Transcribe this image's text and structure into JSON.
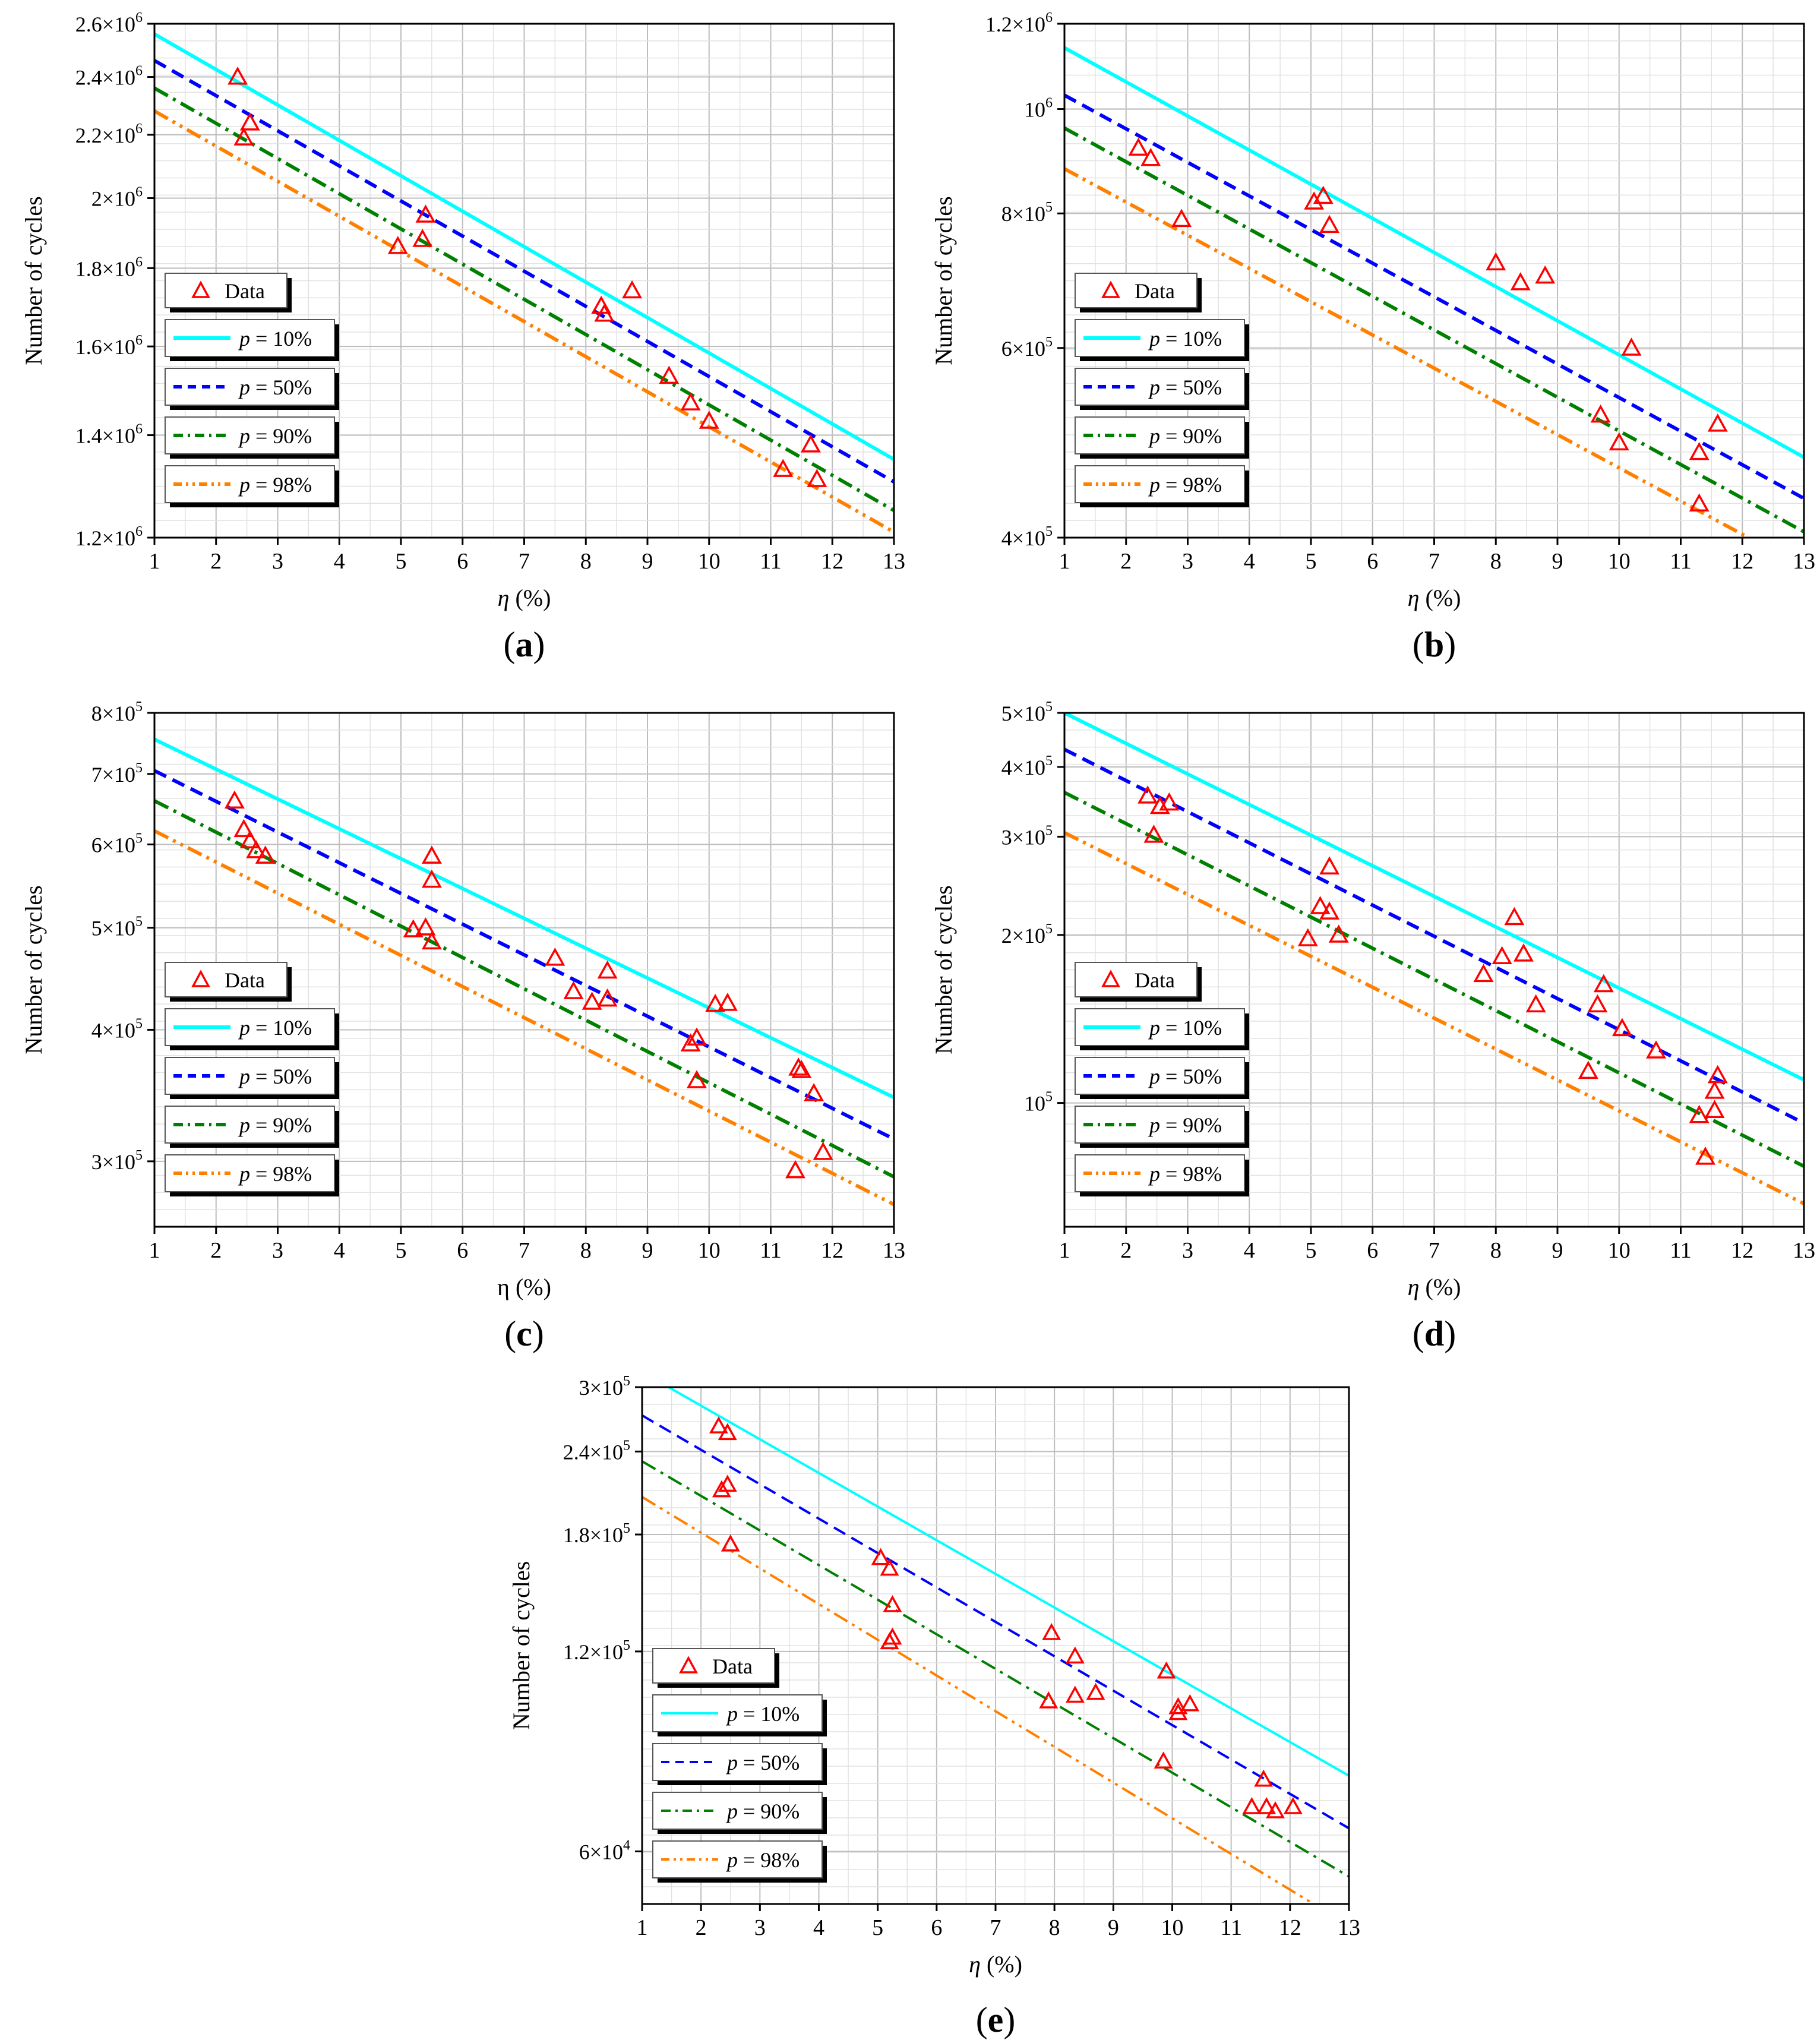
{
  "figure": {
    "x_axis_label_italic": "η",
    "x_axis_label_unit": " (%)",
    "y_axis_label": "Number of cycles",
    "legend_data_label": "Data",
    "legend_p_symbol": "p",
    "legend_series_suffixes": [
      " = 10%",
      " = 50%",
      " = 90%",
      " = 98%"
    ],
    "colors": {
      "p10": "#00ffff",
      "p50": "#0000ff",
      "p90": "#008000",
      "p98": "#ff8000",
      "data": "#ff0000",
      "grid": "#c8c8c8"
    }
  },
  "chart_data": [
    {
      "id": "a",
      "caption_letter": "a",
      "type": "scatter",
      "yscale": "log",
      "xlim": [
        1,
        13
      ],
      "ylim": [
        1200000,
        2600000
      ],
      "xticks": [
        "1",
        "2",
        "3",
        "4",
        "5",
        "6",
        "7",
        "8",
        "9",
        "10",
        "11",
        "12",
        "13"
      ],
      "yticks": [
        {
          "value": 1200000,
          "mant": "1.2×10",
          "exp": "6"
        },
        {
          "value": 1400000,
          "mant": "1.4×10",
          "exp": "6"
        },
        {
          "value": 1600000,
          "mant": "1.6×10",
          "exp": "6"
        },
        {
          "value": 1800000,
          "mant": "1.8×10",
          "exp": "6"
        },
        {
          "value": 2000000,
          "mant": "2×10",
          "exp": "6"
        },
        {
          "value": 2200000,
          "mant": "2.2×10",
          "exp": "6"
        },
        {
          "value": 2400000,
          "mant": "2.4×10",
          "exp": "6"
        },
        {
          "value": 2600000,
          "mant": "2.6×10",
          "exp": "6"
        }
      ],
      "series": [
        {
          "name": "p = 10%",
          "x": [
            1,
            13
          ],
          "y": [
            2560000,
            1350000
          ]
        },
        {
          "name": "p = 50%",
          "x": [
            1,
            13
          ],
          "y": [
            2460000,
            1305000
          ]
        },
        {
          "name": "p = 90%",
          "x": [
            1,
            13
          ],
          "y": [
            2360000,
            1250000
          ]
        },
        {
          "name": "p = 98%",
          "x": [
            1,
            13
          ],
          "y": [
            2280000,
            1210000
          ]
        }
      ],
      "data_points": {
        "x": [
          2.35,
          2.55,
          2.45,
          5.4,
          5.35,
          4.95,
          8.75,
          8.25,
          8.3,
          9.35,
          9.7,
          10.0,
          11.2,
          11.65,
          11.75
        ],
        "y": [
          2400000,
          2240000,
          2190000,
          1950000,
          1880000,
          1860000,
          1740000,
          1700000,
          1680000,
          1530000,
          1470000,
          1430000,
          1330000,
          1380000,
          1310000
        ]
      }
    },
    {
      "id": "b",
      "caption_letter": "b",
      "type": "scatter",
      "yscale": "log",
      "xlim": [
        1,
        13
      ],
      "ylim": [
        400000,
        1200000
      ],
      "xticks": [
        "1",
        "2",
        "3",
        "4",
        "5",
        "6",
        "7",
        "8",
        "9",
        "10",
        "11",
        "12",
        "13"
      ],
      "yticks": [
        {
          "value": 400000,
          "mant": "4×10",
          "exp": "5"
        },
        {
          "value": 600000,
          "mant": "6×10",
          "exp": "5"
        },
        {
          "value": 800000,
          "mant": "8×10",
          "exp": "5"
        },
        {
          "value": 1000000,
          "mant": "10",
          "exp": "6"
        },
        {
          "value": 1200000,
          "mant": "1.2×10",
          "exp": "6"
        }
      ],
      "series": [
        {
          "name": "p = 10%",
          "x": [
            1,
            13
          ],
          "y": [
            1140000,
            475000
          ]
        },
        {
          "name": "p = 50%",
          "x": [
            1,
            13
          ],
          "y": [
            1030000,
            435000
          ]
        },
        {
          "name": "p = 90%",
          "x": [
            1,
            13
          ],
          "y": [
            960000,
            405000
          ]
        },
        {
          "name": "p = 98%",
          "x": [
            1,
            12.1
          ],
          "y": [
            880000,
            400000
          ]
        }
      ],
      "data_points": {
        "x": [
          2.2,
          2.4,
          2.9,
          5.05,
          5.2,
          5.3,
          8.0,
          8.4,
          8.8,
          10.2,
          9.7,
          10.0,
          11.3,
          11.6,
          11.3
        ],
        "y": [
          920000,
          900000,
          790000,
          820000,
          830000,
          780000,
          720000,
          690000,
          700000,
          600000,
          520000,
          490000,
          480000,
          510000,
          430000
        ]
      }
    },
    {
      "id": "c",
      "caption_letter": "c",
      "type": "scatter",
      "yscale": "log",
      "xlim": [
        1,
        13
      ],
      "ylim": [
        260000,
        800000
      ],
      "xticks": [
        "1",
        "2",
        "3",
        "4",
        "5",
        "6",
        "7",
        "8",
        "9",
        "10",
        "11",
        "12",
        "13"
      ],
      "yticks": [
        {
          "value": 300000,
          "mant": "3×10",
          "exp": "5"
        },
        {
          "value": 400000,
          "mant": "4×10",
          "exp": "5"
        },
        {
          "value": 500000,
          "mant": "5×10",
          "exp": "5"
        },
        {
          "value": 600000,
          "mant": "6×10",
          "exp": "5"
        },
        {
          "value": 700000,
          "mant": "7×10",
          "exp": "5"
        },
        {
          "value": 800000,
          "mant": "8×10",
          "exp": "5"
        }
      ],
      "series": [
        {
          "name": "p = 10%",
          "x": [
            1,
            13
          ],
          "y": [
            755000,
            345000
          ]
        },
        {
          "name": "p = 50%",
          "x": [
            1,
            13
          ],
          "y": [
            705000,
            315000
          ]
        },
        {
          "name": "p = 90%",
          "x": [
            1,
            13
          ],
          "y": [
            660000,
            290000
          ]
        },
        {
          "name": "p = 98%",
          "x": [
            1,
            13
          ],
          "y": [
            618000,
            273000
          ]
        }
      ],
      "data_points": {
        "x": [
          2.3,
          2.45,
          2.55,
          2.65,
          2.8,
          5.5,
          5.5,
          5.2,
          5.4,
          5.5,
          7.5,
          7.8,
          8.1,
          8.35,
          8.35,
          9.7,
          9.8,
          9.8,
          10.1,
          10.3,
          11.45,
          11.5,
          11.7,
          11.4,
          11.85
        ],
        "y": [
          660000,
          620000,
          605000,
          592000,
          585000,
          585000,
          555000,
          498000,
          500000,
          485000,
          468000,
          435000,
          425000,
          455000,
          428000,
          388000,
          393000,
          358000,
          423000,
          424000,
          368000,
          366000,
          348000,
          294000,
          306000
        ]
      }
    },
    {
      "id": "d",
      "caption_letter": "d",
      "type": "scatter",
      "yscale": "log",
      "xlim": [
        1,
        13
      ],
      "ylim": [
        60000,
        500000
      ],
      "xticks": [
        "1",
        "2",
        "3",
        "4",
        "5",
        "6",
        "7",
        "8",
        "9",
        "10",
        "11",
        "12",
        "13"
      ],
      "yticks": [
        {
          "value": 100000,
          "mant": "10",
          "exp": "5"
        },
        {
          "value": 200000,
          "mant": "2×10",
          "exp": "5"
        },
        {
          "value": 300000,
          "mant": "3×10",
          "exp": "5"
        },
        {
          "value": 400000,
          "mant": "4×10",
          "exp": "5"
        },
        {
          "value": 500000,
          "mant": "5×10",
          "exp": "5"
        }
      ],
      "series": [
        {
          "name": "p = 10%",
          "x": [
            1,
            13
          ],
          "y": [
            500000,
            110000
          ]
        },
        {
          "name": "p = 50%",
          "x": [
            1,
            13
          ],
          "y": [
            430000,
            92000
          ]
        },
        {
          "name": "p = 90%",
          "x": [
            1,
            13
          ],
          "y": [
            360000,
            77000
          ]
        },
        {
          "name": "p = 98%",
          "x": [
            1,
            13
          ],
          "y": [
            305000,
            66000
          ]
        }
      ],
      "data_points": {
        "x": [
          2.35,
          2.55,
          2.7,
          2.45,
          5.3,
          5.15,
          5.3,
          5.45,
          4.95,
          8.3,
          8.45,
          8.1,
          7.8,
          8.65,
          9.75,
          9.65,
          10.05,
          10.6,
          9.5,
          11.6,
          11.55,
          11.55,
          11.3,
          11.4
        ],
        "y": [
          355000,
          340000,
          345000,
          302000,
          265000,
          225000,
          220000,
          200000,
          197000,
          215000,
          185000,
          183000,
          170000,
          150000,
          163000,
          150000,
          136000,
          124000,
          114000,
          112000,
          105000,
          97000,
          95000,
          80000
        ]
      }
    },
    {
      "id": "e",
      "caption_letter": "e",
      "type": "scatter",
      "yscale": "log",
      "xlim": [
        1,
        13
      ],
      "ylim": [
        50000,
        300000
      ],
      "xticks": [
        "1",
        "2",
        "3",
        "4",
        "5",
        "6",
        "7",
        "8",
        "9",
        "10",
        "11",
        "12",
        "13"
      ],
      "yticks": [
        {
          "value": 60000,
          "mant": "6×10",
          "exp": "4"
        },
        {
          "value": 120000,
          "mant": "1.2×10",
          "exp": "5"
        },
        {
          "value": 180000,
          "mant": "1.8×10",
          "exp": "5"
        },
        {
          "value": 240000,
          "mant": "2.4×10",
          "exp": "5"
        },
        {
          "value": 300000,
          "mant": "3×10",
          "exp": "5"
        }
      ],
      "series": [
        {
          "name": "p = 10%",
          "x": [
            1.45,
            13
          ],
          "y": [
            300000,
            78000
          ]
        },
        {
          "name": "p = 50%",
          "x": [
            1,
            13
          ],
          "y": [
            272000,
            65000
          ]
        },
        {
          "name": "p = 90%",
          "x": [
            1,
            13
          ],
          "y": [
            232000,
            55000
          ]
        },
        {
          "name": "p = 98%",
          "x": [
            1,
            12.4
          ],
          "y": [
            205000,
            50000
          ]
        }
      ],
      "data_points": {
        "x": [
          2.3,
          2.45,
          2.35,
          2.45,
          2.5,
          5.05,
          5.2,
          5.25,
          5.2,
          5.25,
          7.95,
          8.35,
          8.35,
          8.7,
          7.9,
          9.9,
          10.1,
          10.3,
          10.1,
          9.85,
          11.55,
          11.35,
          11.6,
          11.75,
          12.05
        ],
        "y": [
          262000,
          256000,
          210000,
          214000,
          174000,
          166000,
          160000,
          141000,
          124000,
          126000,
          128000,
          118000,
          103000,
          104000,
          101000,
          112000,
          99000,
          100000,
          97000,
          82000,
          77000,
          70000,
          70000,
          69000,
          70000
        ]
      }
    }
  ]
}
